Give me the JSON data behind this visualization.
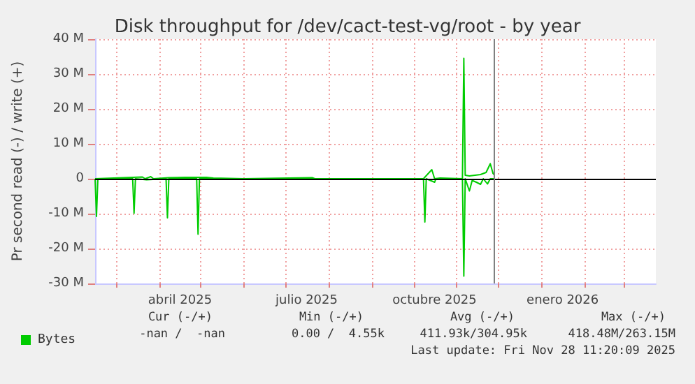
{
  "chart_data": {
    "type": "line",
    "title": "Disk throughput for /dev/cact-test-vg/root - by year",
    "ylabel": "Pr second read (-) / write (+)",
    "xlim": [
      "2025-02-14",
      "2026-03-24"
    ],
    "xticks": [
      {
        "value": "2025-03-01",
        "label": null
      },
      {
        "value": "2025-04-01",
        "label": null
      },
      {
        "value": "2025-04-16",
        "label": "abril 2025"
      },
      {
        "value": "2025-05-01",
        "label": null
      },
      {
        "value": "2025-06-01",
        "label": null
      },
      {
        "value": "2025-07-01",
        "label": null
      },
      {
        "value": "2025-07-16",
        "label": "julio 2025"
      },
      {
        "value": "2025-08-01",
        "label": null
      },
      {
        "value": "2025-09-01",
        "label": null
      },
      {
        "value": "2025-10-01",
        "label": null
      },
      {
        "value": "2025-10-16",
        "label": "octubre 2025"
      },
      {
        "value": "2025-11-01",
        "label": null
      },
      {
        "value": "2025-12-01",
        "label": null
      },
      {
        "value": "2026-01-01",
        "label": null
      },
      {
        "value": "2026-01-16",
        "label": "enero 2026"
      },
      {
        "value": "2026-02-01",
        "label": null
      },
      {
        "value": "2026-03-01",
        "label": null
      }
    ],
    "ylim": [
      -30,
      40
    ],
    "yticks": [
      {
        "value": -30,
        "label": "-30 M"
      },
      {
        "value": -20,
        "label": "-20 M"
      },
      {
        "value": -10,
        "label": "-10 M"
      },
      0,
      {
        "value": 10,
        "label": "10 M"
      },
      {
        "value": 20,
        "label": "20 M"
      },
      {
        "value": 30,
        "label": "30 M"
      },
      {
        "value": 40,
        "label": "40 M"
      }
    ],
    "grid": true,
    "legend": "bottom left",
    "marker": "none",
    "line_style": "solid",
    "series": [
      {
        "name": "Bytes",
        "color": "#00cc00",
        "x": [
          "2025-02-14",
          "2025-02-15",
          "2025-02-16",
          "2025-03-13",
          "2025-03-14",
          "2025-03-15",
          "2025-03-23",
          "2025-04-06",
          "2025-04-07",
          "2025-04-08",
          "2025-04-28",
          "2025-04-29",
          "2025-04-30",
          "2025-10-08",
          "2025-10-09",
          "2025-10-10",
          "2025-10-16",
          "2025-10-17",
          "2025-11-05",
          "2025-11-06",
          "2025-11-07",
          "2025-11-10",
          "2025-11-12",
          "2025-11-15",
          "2025-11-18",
          "2025-11-20",
          "2025-11-23",
          "2025-11-25",
          "2025-11-28"
        ],
        "values": [
          0,
          -10.8,
          0,
          0,
          -9.9,
          0,
          -0.3,
          0,
          -11.2,
          0,
          0,
          -15.9,
          0,
          0,
          -12.4,
          0,
          -1.0,
          0,
          0,
          -27.9,
          0,
          -3.5,
          -0.5,
          -1.0,
          -1.6,
          0,
          -1.5,
          0,
          0
        ]
      },
      {
        "color": "#00cc00",
        "x": [
          "2025-02-14",
          "2025-03-20",
          "2025-03-22",
          "2025-03-26",
          "2025-03-28",
          "2025-04-08",
          "2025-04-20",
          "2025-05-05",
          "2025-05-10",
          "2025-06-01",
          "2025-07-20",
          "2025-07-22",
          "2025-10-08",
          "2025-10-14",
          "2025-10-16",
          "2025-10-20",
          "2025-11-05",
          "2025-11-06",
          "2025-11-07",
          "2025-11-10",
          "2025-11-14",
          "2025-11-18",
          "2025-11-22",
          "2025-11-25",
          "2025-11-27",
          "2025-11-28"
        ],
        "values": [
          0,
          0.5,
          0,
          0.6,
          0,
          0.3,
          0.4,
          0.4,
          0.2,
          0,
          0.3,
          0,
          0,
          2.6,
          0,
          0.2,
          0,
          34.5,
          1.0,
          0.8,
          1.0,
          1.2,
          1.8,
          4.3,
          1.5,
          1.0
        ]
      }
    ],
    "ref_lines": [
      {
        "axis": "y",
        "value": 0,
        "color": "#000000"
      },
      {
        "axis": "x",
        "value": "2025-11-28",
        "color": "#808080"
      }
    ],
    "annotations": [
      "Cur (-/+)",
      "Min (-/+)",
      "Avg (-/+)",
      "Max (-/+)",
      "-nan /  -nan",
      "0.00 /  4.55k",
      "411.93k/304.95k",
      "418.48M/263.15M",
      "Last update: Fri Nov 28 11:20:09 2025"
    ]
  }
}
